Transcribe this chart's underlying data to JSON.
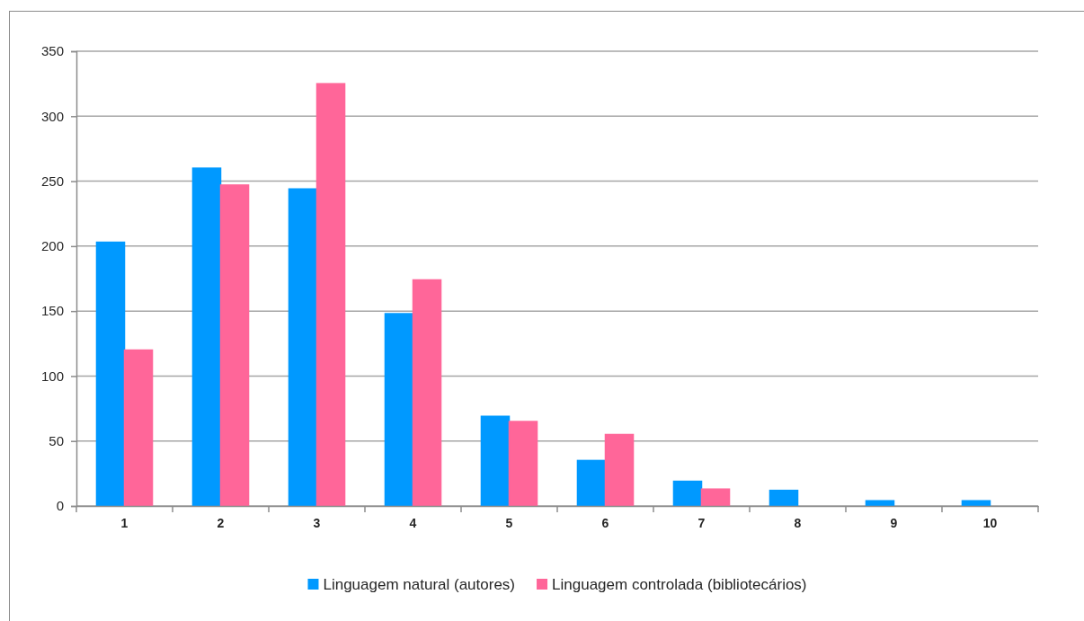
{
  "chart_data": {
    "type": "bar",
    "categories": [
      "1",
      "2",
      "3",
      "4",
      "5",
      "6",
      "7",
      "8",
      "9",
      "10"
    ],
    "series": [
      {
        "name": "Linguagem natural (autores)",
        "color": "#0099ff",
        "values": [
          203,
          260,
          244,
          148,
          69,
          35,
          19,
          12,
          4,
          4
        ]
      },
      {
        "name": "Linguagem controlada (bibliotecários)",
        "color": "#ff6699",
        "values": [
          120,
          247,
          325,
          174,
          65,
          55,
          13,
          0,
          0,
          0
        ]
      }
    ],
    "ylim": [
      0,
      350
    ],
    "yticks": [
      0,
      50,
      100,
      150,
      200,
      250,
      300,
      350
    ],
    "grid": "y",
    "legend": "bottom"
  }
}
